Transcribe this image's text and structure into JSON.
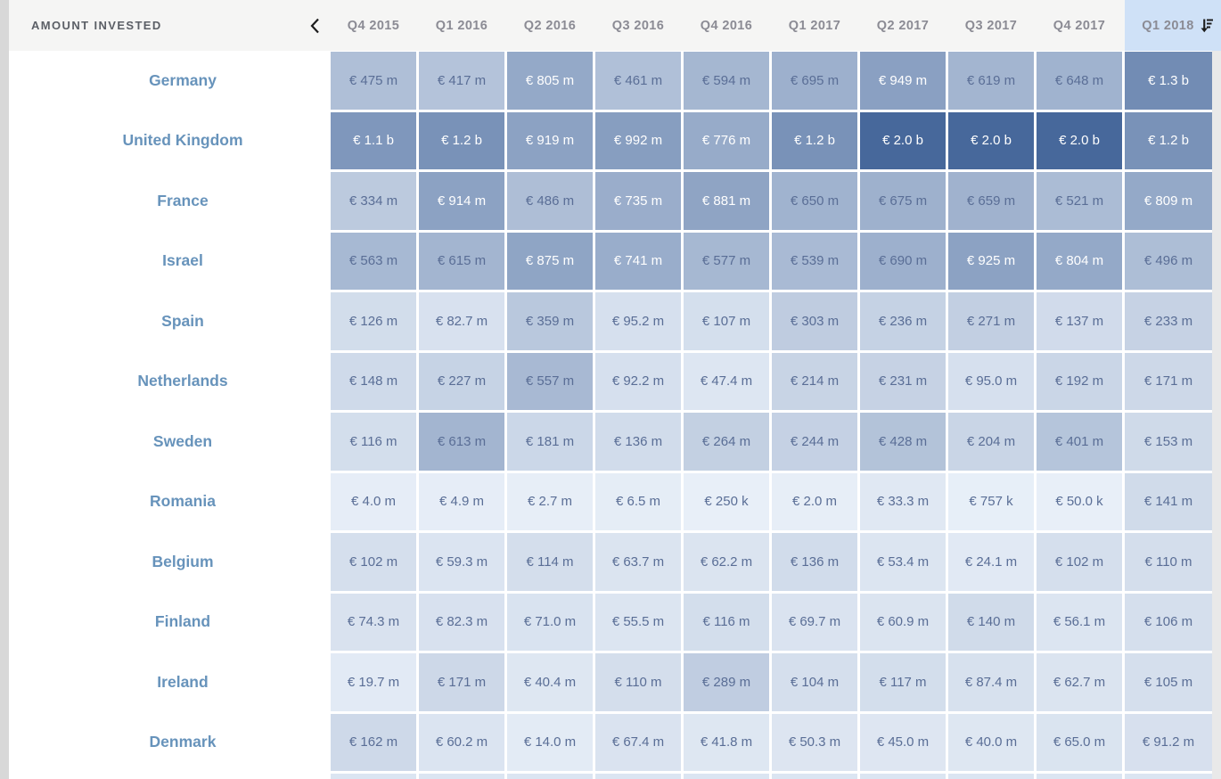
{
  "header": {
    "title": "AMOUNT INVESTED",
    "sorted_column": "Q1 2018",
    "sort_direction": "descending"
  },
  "colors": {
    "left_strip": "#d8d8d8",
    "right_strip": "#e9e9e9",
    "header_bg": "#f5f5f4",
    "header_title_text": "#5b5f66",
    "column_label_text": "#8b8b94",
    "selected_column_bg": "#cfe1f7",
    "country_text": "#6793bb",
    "cell_text_dark": "#5a6e96",
    "cell_text_light": "#ffffff",
    "heat_min": "#e8eff8",
    "heat_max": "#47689b",
    "partial_row_cell": "#dbe5f2",
    "icon_color": "#1c1c1c"
  },
  "icons": {
    "collapse": "chevron-left-icon",
    "sort": "sort-descending-icon"
  },
  "chart_data": {
    "type": "heatmap",
    "title": "Amount invested",
    "unit": "EUR",
    "sorted_by": "Q1 2018",
    "sort_direction": "descending",
    "columns": [
      "Q4 2015",
      "Q1 2016",
      "Q2 2016",
      "Q3 2016",
      "Q4 2016",
      "Q1 2017",
      "Q2 2017",
      "Q3 2017",
      "Q4 2017",
      "Q1 2018"
    ],
    "rows": [
      {
        "name": "Germany",
        "labels": [
          "€ 475 m",
          "€ 417 m",
          "€ 805 m",
          "€ 461 m",
          "€ 594 m",
          "€ 695 m",
          "€ 949 m",
          "€ 619 m",
          "€ 648 m",
          "€ 1.3 b"
        ],
        "values_m": [
          475,
          417,
          805,
          461,
          594,
          695,
          949,
          619,
          648,
          1300
        ]
      },
      {
        "name": "United Kingdom",
        "labels": [
          "€ 1.1 b",
          "€ 1.2 b",
          "€ 919 m",
          "€ 992 m",
          "€ 776 m",
          "€ 1.2 b",
          "€ 2.0 b",
          "€ 2.0 b",
          "€ 2.0 b",
          "€ 1.2 b"
        ],
        "values_m": [
          1100,
          1200,
          919,
          992,
          776,
          1200,
          2000,
          2000,
          2000,
          1200
        ]
      },
      {
        "name": "France",
        "labels": [
          "€ 334 m",
          "€ 914 m",
          "€ 486 m",
          "€ 735 m",
          "€ 881 m",
          "€ 650 m",
          "€ 675 m",
          "€ 659 m",
          "€ 521 m",
          "€ 809 m"
        ],
        "values_m": [
          334,
          914,
          486,
          735,
          881,
          650,
          675,
          659,
          521,
          809
        ]
      },
      {
        "name": "Israel",
        "labels": [
          "€ 563 m",
          "€ 615 m",
          "€ 875 m",
          "€ 741 m",
          "€ 577 m",
          "€ 539 m",
          "€ 690 m",
          "€ 925 m",
          "€ 804 m",
          "€ 496 m"
        ],
        "values_m": [
          563,
          615,
          875,
          741,
          577,
          539,
          690,
          925,
          804,
          496
        ]
      },
      {
        "name": "Spain",
        "labels": [
          "€ 126 m",
          "€ 82.7 m",
          "€ 359 m",
          "€ 95.2 m",
          "€ 107 m",
          "€ 303 m",
          "€ 236 m",
          "€ 271 m",
          "€ 137 m",
          "€ 233 m"
        ],
        "values_m": [
          126,
          82.7,
          359,
          95.2,
          107,
          303,
          236,
          271,
          137,
          233
        ]
      },
      {
        "name": "Netherlands",
        "labels": [
          "€ 148 m",
          "€ 227 m",
          "€ 557 m",
          "€ 92.2 m",
          "€ 47.4 m",
          "€ 214 m",
          "€ 231 m",
          "€ 95.0 m",
          "€ 192 m",
          "€ 171 m"
        ],
        "values_m": [
          148,
          227,
          557,
          92.2,
          47.4,
          214,
          231,
          95,
          192,
          171
        ]
      },
      {
        "name": "Sweden",
        "labels": [
          "€ 116 m",
          "€ 613 m",
          "€ 181 m",
          "€ 136 m",
          "€ 264 m",
          "€ 244 m",
          "€ 428 m",
          "€ 204 m",
          "€ 401 m",
          "€ 153 m"
        ],
        "values_m": [
          116,
          613,
          181,
          136,
          264,
          244,
          428,
          204,
          401,
          153
        ]
      },
      {
        "name": "Romania",
        "labels": [
          "€ 4.0 m",
          "€ 4.9 m",
          "€ 2.7 m",
          "€ 6.5 m",
          "€ 250 k",
          "€ 2.0 m",
          "€ 33.3 m",
          "€ 757 k",
          "€ 50.0 k",
          "€ 141 m"
        ],
        "values_m": [
          4,
          4.9,
          2.7,
          6.5,
          0.25,
          2,
          33.3,
          0.757,
          0.05,
          141
        ]
      },
      {
        "name": "Belgium",
        "labels": [
          "€ 102 m",
          "€ 59.3 m",
          "€ 114 m",
          "€ 63.7 m",
          "€ 62.2 m",
          "€ 136 m",
          "€ 53.4 m",
          "€ 24.1 m",
          "€ 102 m",
          "€ 110 m"
        ],
        "values_m": [
          102,
          59.3,
          114,
          63.7,
          62.2,
          136,
          53.4,
          24.1,
          102,
          110
        ]
      },
      {
        "name": "Finland",
        "labels": [
          "€ 74.3 m",
          "€ 82.3 m",
          "€ 71.0 m",
          "€ 55.5 m",
          "€ 116 m",
          "€ 69.7 m",
          "€ 60.9 m",
          "€ 140 m",
          "€ 56.1 m",
          "€ 106 m"
        ],
        "values_m": [
          74.3,
          82.3,
          71,
          55.5,
          116,
          69.7,
          60.9,
          140,
          56.1,
          106
        ]
      },
      {
        "name": "Ireland",
        "labels": [
          "€ 19.7 m",
          "€ 171 m",
          "€ 40.4 m",
          "€ 110 m",
          "€ 289 m",
          "€ 104 m",
          "€ 117 m",
          "€ 87.4 m",
          "€ 62.7 m",
          "€ 105 m"
        ],
        "values_m": [
          19.7,
          171,
          40.4,
          110,
          289,
          104,
          117,
          87.4,
          62.7,
          105
        ]
      },
      {
        "name": "Denmark",
        "labels": [
          "€ 162 m",
          "€ 60.2 m",
          "€ 14.0 m",
          "€ 67.4 m",
          "€ 41.8 m",
          "€ 50.3 m",
          "€ 45.0 m",
          "€ 40.0 m",
          "€ 65.0 m",
          "€ 91.2 m"
        ],
        "values_m": [
          162,
          60.2,
          14,
          67.4,
          41.8,
          50.3,
          45,
          40,
          65,
          91.2
        ]
      }
    ],
    "color_scale": {
      "min_hex": "#e8eff8",
      "max_hex": "#47689b",
      "max_value_m": 2000,
      "gamma": 0.72,
      "white_text_threshold": 0.475
    },
    "partial_next_row_visible": true
  }
}
